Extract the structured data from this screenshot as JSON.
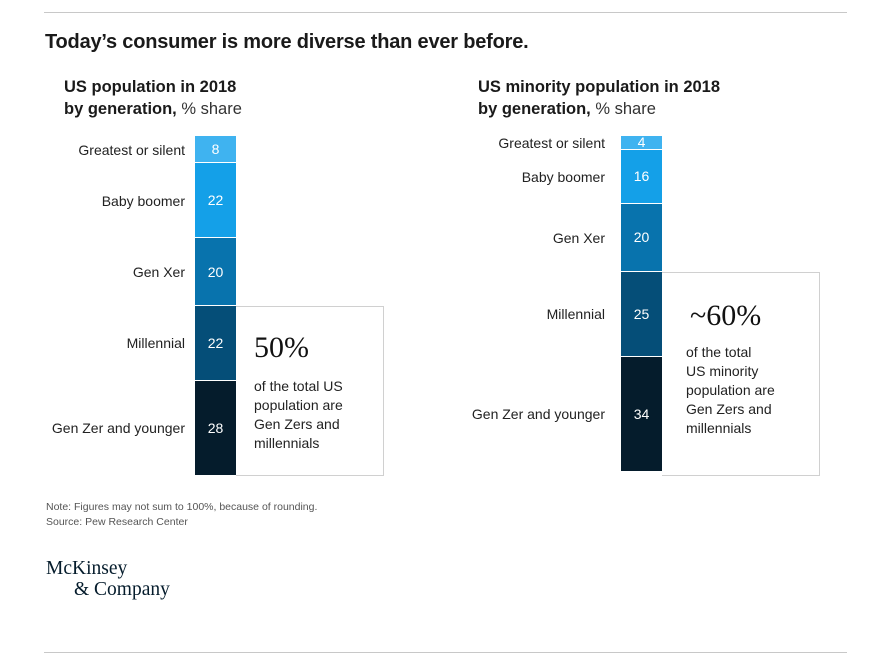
{
  "title": "Today’s consumer is more diverse than ever before.",
  "colors": {
    "greatest": "#3fb3f0",
    "boomer": "#14a0e8",
    "genx": "#0873ad",
    "millennial": "#054e78",
    "genz": "#051c2c"
  },
  "chart_data": [
    {
      "type": "bar",
      "stacked": true,
      "orientation": "vertical",
      "title_bold": "US population in 2018",
      "title_bold2": "by generation,",
      "unit": "% share",
      "categories": [
        "Greatest or silent",
        "Baby boomer",
        "Gen Xer",
        "Millennial",
        "Gen Zer and younger"
      ],
      "values": [
        8,
        22,
        20,
        22,
        28
      ],
      "callout": {
        "big": "50%",
        "text": [
          "of the total US",
          "population are",
          "Gen Zers and",
          "millennials"
        ]
      }
    },
    {
      "type": "bar",
      "stacked": true,
      "orientation": "vertical",
      "title_bold": "US minority population in 2018",
      "title_bold2": "by generation,",
      "unit": "% share",
      "categories": [
        "Greatest or silent",
        "Baby boomer",
        "Gen Xer",
        "Millennial",
        "Gen Zer and younger"
      ],
      "values": [
        4,
        16,
        20,
        25,
        34
      ],
      "callout": {
        "big": "~60%",
        "text": [
          "of the total",
          "US minority",
          "population are",
          "Gen Zers and",
          "millennials"
        ]
      }
    }
  ],
  "note": "Note: Figures may not sum to 100%, because of rounding.",
  "source": "Source: Pew Research Center",
  "logo": {
    "line1": "McKinsey",
    "line2": "& Company"
  }
}
